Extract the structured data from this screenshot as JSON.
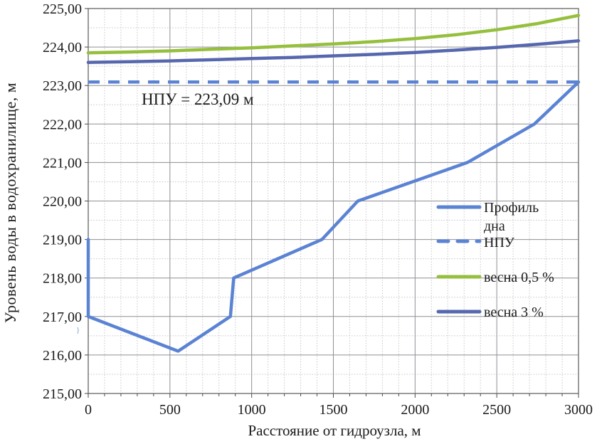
{
  "chart_data": {
    "type": "line",
    "title": "",
    "xlabel": "Расстояние от гидроузла, м",
    "ylabel": "Уровень воды в водохранилище, м",
    "xlim": [
      0,
      3000
    ],
    "ylim": [
      215,
      225
    ],
    "x_major_step": 500,
    "x_minor_step": 100,
    "y_major_step": 1,
    "y_minor_step": 0.5,
    "grid": "major and minor gridlines on",
    "xticks": [
      "0",
      "500",
      "1000",
      "1500",
      "2000",
      "2500",
      "3000"
    ],
    "yticks": [
      "225,00",
      "224,00",
      "223,00",
      "222,00",
      "221,00",
      "220,00",
      "219,00",
      "218,00",
      "217,00",
      "216,00",
      "215,00"
    ],
    "annotation": "НПУ = 223,09 м",
    "stray_mark": "}",
    "series": [
      {
        "name": "Профиль дна",
        "color": "#5b83d4",
        "style": "solid",
        "points": [
          [
            0,
            219
          ],
          [
            0,
            217
          ],
          [
            550,
            216.1
          ],
          [
            870,
            217
          ],
          [
            890,
            218
          ],
          [
            1430,
            219
          ],
          [
            1650,
            220
          ],
          [
            2320,
            221
          ],
          [
            2730,
            222
          ],
          [
            3000,
            223.09
          ]
        ]
      },
      {
        "name": "НПУ",
        "color": "#5b83d4",
        "style": "dashed",
        "points": [
          [
            0,
            223.09
          ],
          [
            3000,
            223.09
          ]
        ]
      },
      {
        "name": "весна 0,5 %",
        "color": "#95bf3d",
        "style": "solid",
        "points": [
          [
            0,
            223.85
          ],
          [
            250,
            223.87
          ],
          [
            500,
            223.9
          ],
          [
            750,
            223.94
          ],
          [
            1000,
            223.98
          ],
          [
            1250,
            224.03
          ],
          [
            1500,
            224.08
          ],
          [
            1750,
            224.14
          ],
          [
            2000,
            224.22
          ],
          [
            2250,
            224.32
          ],
          [
            2500,
            224.45
          ],
          [
            2750,
            224.61
          ],
          [
            3000,
            224.82
          ]
        ]
      },
      {
        "name": "весна 3 %",
        "color": "#5667ae",
        "style": "solid",
        "points": [
          [
            0,
            223.6
          ],
          [
            250,
            223.62
          ],
          [
            500,
            223.64
          ],
          [
            750,
            223.67
          ],
          [
            1000,
            223.7
          ],
          [
            1250,
            223.73
          ],
          [
            1500,
            223.77
          ],
          [
            1750,
            223.81
          ],
          [
            2000,
            223.86
          ],
          [
            2250,
            223.92
          ],
          [
            2500,
            223.99
          ],
          [
            2750,
            224.07
          ],
          [
            3000,
            224.16
          ]
        ]
      }
    ],
    "legend": {
      "position": "middle-right, no border",
      "items": [
        {
          "series": 0,
          "lines": [
            "Профиль",
            "дна"
          ]
        },
        {
          "series": 1,
          "lines": [
            "НПУ"
          ]
        },
        {
          "series": 2,
          "lines": [
            "весна 0,5 %"
          ]
        },
        {
          "series": 3,
          "lines": [
            "весна 3 %"
          ]
        }
      ]
    },
    "style_colors": {
      "major_grid": "#8f8f96",
      "minor_grid": "#c6c6cf",
      "plot_border": "#7a7a7a",
      "tick": "#4a4a4a",
      "text": "#1a1a1a"
    }
  }
}
